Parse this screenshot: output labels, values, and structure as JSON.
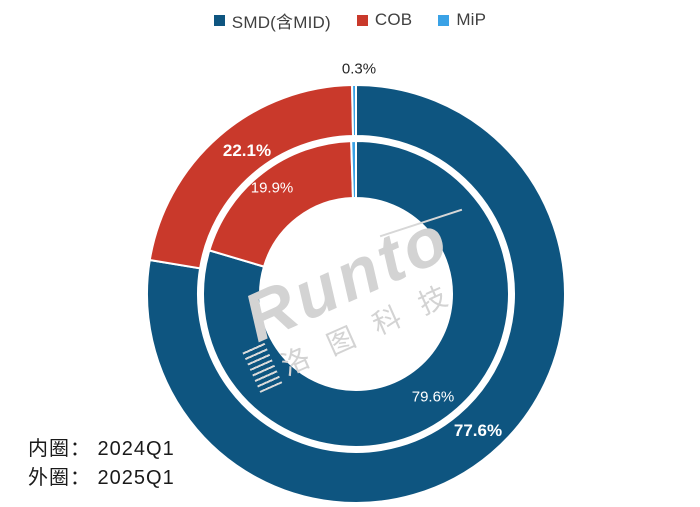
{
  "legend": {
    "items": [
      {
        "label": "SMD(含MID)",
        "color": "#0E5580"
      },
      {
        "label": "COB",
        "color": "#C9392B"
      },
      {
        "label": "MiP",
        "color": "#3AA2E6"
      }
    ]
  },
  "chart_data": {
    "type": "pie",
    "subtype": "nested-donut",
    "title": "",
    "legend_position": "top",
    "categories": [
      "SMD(含MID)",
      "COB",
      "MiP"
    ],
    "colors": [
      "#0E5580",
      "#C9392B",
      "#3AA2E6"
    ],
    "start_angle": "12-o'clock, clockwise",
    "rings": [
      {
        "name": "2024Q1",
        "position": "inner",
        "segments": [
          {
            "category": "SMD(含MID)",
            "value": 79.6,
            "label": "79.6%"
          },
          {
            "category": "COB",
            "value": 19.9,
            "label": "19.9%"
          },
          {
            "category": "MiP",
            "value": 0.5,
            "label": ""
          }
        ]
      },
      {
        "name": "2025Q1",
        "position": "outer",
        "segments": [
          {
            "category": "SMD(含MID)",
            "value": 77.6,
            "label": "77.6%"
          },
          {
            "category": "COB",
            "value": 22.1,
            "label": "22.1%"
          },
          {
            "category": "MiP",
            "value": 0.3,
            "label": "0.3%"
          }
        ]
      }
    ]
  },
  "annotations": {
    "inner_ring_note": "内圈： 2024Q1",
    "outer_ring_note": "外圈： 2025Q1"
  },
  "watermark": {
    "latin": "Runto",
    "cjk": "洛图科技"
  }
}
